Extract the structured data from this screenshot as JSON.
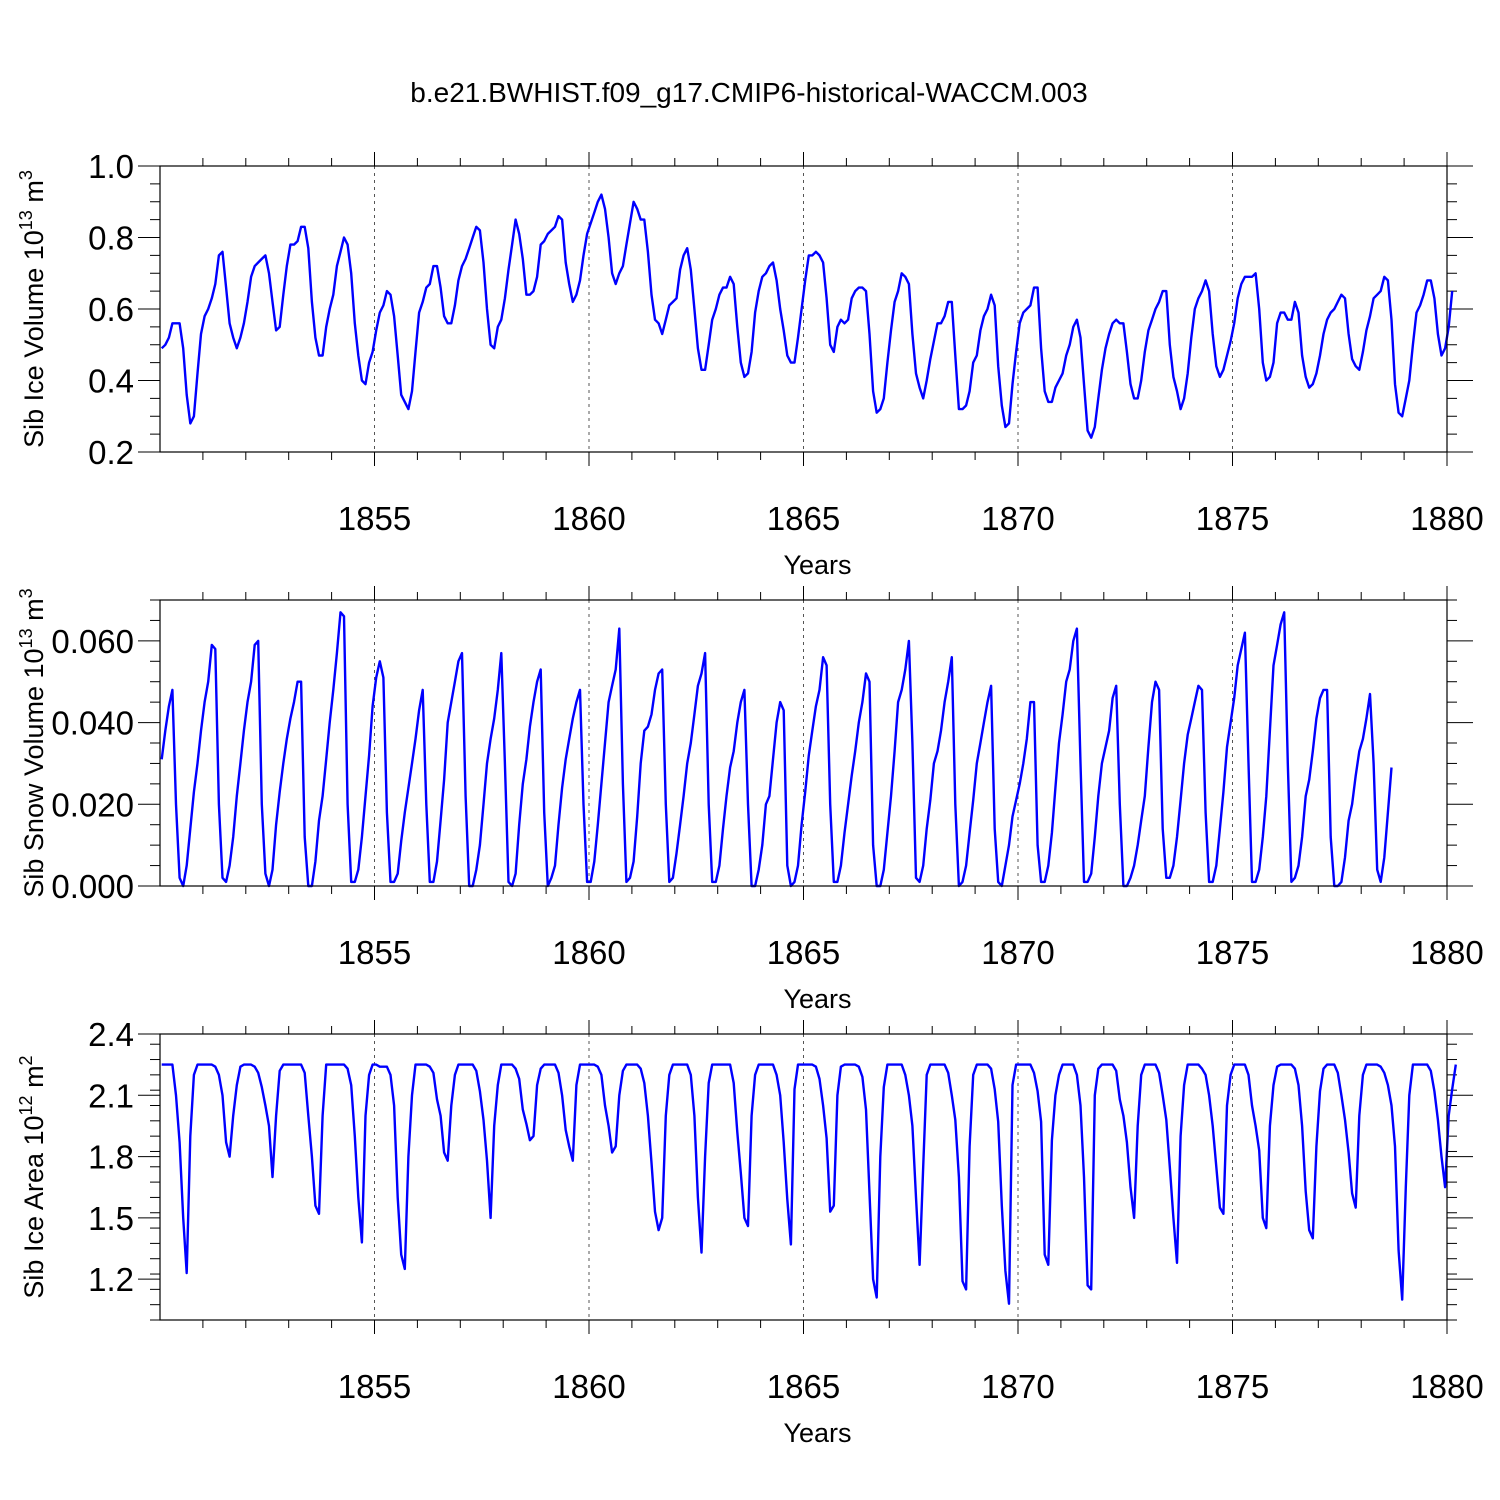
{
  "title": "b.e21.BWHIST.f09_g17.CMIP6-historical-WACCM.003",
  "colors": {
    "series": "#0000ff",
    "axis": "#000000",
    "grid": "#555555"
  },
  "chart_data": [
    {
      "type": "line",
      "name": "sib-ice-volume",
      "ylabel_main": "Sib Ice Volume 10",
      "ylabel_exp": "13",
      "ylabel_unit": "m",
      "ylabel_unit_exp": "3",
      "xlabel": "Years",
      "xlim": [
        1850,
        1880
      ],
      "ylim": [
        0.2,
        1.0
      ],
      "xticks": [
        1855,
        1860,
        1865,
        1870,
        1875,
        1880
      ],
      "xtick_labels": [
        "1855",
        "1860",
        "1865",
        "1870",
        "1875",
        "1880"
      ],
      "yticks": [
        0.2,
        0.4,
        0.6,
        0.8,
        1.0
      ],
      "ytick_labels": [
        "0.2",
        "0.4",
        "0.6",
        "0.8",
        "1.0"
      ],
      "x_start": 1850.04,
      "x_step": 0.08333,
      "values": [
        0.49,
        0.5,
        0.52,
        0.56,
        0.56,
        0.56,
        0.49,
        0.36,
        0.28,
        0.3,
        0.42,
        0.53,
        0.58,
        0.6,
        0.63,
        0.67,
        0.75,
        0.76,
        0.66,
        0.56,
        0.52,
        0.49,
        0.52,
        0.56,
        0.62,
        0.69,
        0.72,
        0.73,
        0.74,
        0.75,
        0.7,
        0.62,
        0.54,
        0.55,
        0.64,
        0.72,
        0.78,
        0.78,
        0.79,
        0.83,
        0.83,
        0.77,
        0.62,
        0.52,
        0.47,
        0.47,
        0.55,
        0.6,
        0.64,
        0.72,
        0.76,
        0.8,
        0.78,
        0.7,
        0.56,
        0.47,
        0.4,
        0.39,
        0.45,
        0.48,
        0.54,
        0.59,
        0.61,
        0.65,
        0.64,
        0.58,
        0.47,
        0.36,
        0.34,
        0.32,
        0.37,
        0.48,
        0.59,
        0.62,
        0.66,
        0.67,
        0.72,
        0.72,
        0.66,
        0.58,
        0.56,
        0.56,
        0.61,
        0.68,
        0.72,
        0.74,
        0.77,
        0.8,
        0.83,
        0.82,
        0.73,
        0.6,
        0.5,
        0.49,
        0.55,
        0.57,
        0.63,
        0.71,
        0.78,
        0.85,
        0.81,
        0.74,
        0.64,
        0.64,
        0.65,
        0.69,
        0.78,
        0.79,
        0.81,
        0.82,
        0.83,
        0.86,
        0.85,
        0.73,
        0.67,
        0.62,
        0.64,
        0.68,
        0.75,
        0.81,
        0.84,
        0.87,
        0.9,
        0.92,
        0.88,
        0.8,
        0.7,
        0.67,
        0.7,
        0.72,
        0.78,
        0.84,
        0.9,
        0.88,
        0.85,
        0.85,
        0.76,
        0.64,
        0.57,
        0.56,
        0.53,
        0.57,
        0.61,
        0.62,
        0.63,
        0.71,
        0.75,
        0.77,
        0.71,
        0.6,
        0.49,
        0.43,
        0.43,
        0.5,
        0.57,
        0.6,
        0.64,
        0.66,
        0.66,
        0.69,
        0.67,
        0.55,
        0.45,
        0.41,
        0.42,
        0.48,
        0.59,
        0.65,
        0.69,
        0.7,
        0.72,
        0.73,
        0.68,
        0.6,
        0.54,
        0.47,
        0.45,
        0.45,
        0.52,
        0.6,
        0.68,
        0.75,
        0.75,
        0.76,
        0.75,
        0.73,
        0.63,
        0.5,
        0.48,
        0.55,
        0.57,
        0.56,
        0.57,
        0.63,
        0.65,
        0.66,
        0.66,
        0.65,
        0.53,
        0.37,
        0.31,
        0.32,
        0.35,
        0.45,
        0.54,
        0.62,
        0.65,
        0.7,
        0.69,
        0.67,
        0.53,
        0.42,
        0.38,
        0.35,
        0.4,
        0.46,
        0.51,
        0.56,
        0.56,
        0.58,
        0.62,
        0.62,
        0.47,
        0.32,
        0.32,
        0.33,
        0.37,
        0.45,
        0.47,
        0.54,
        0.58,
        0.6,
        0.64,
        0.61,
        0.44,
        0.33,
        0.27,
        0.28,
        0.39,
        0.48,
        0.56,
        0.59,
        0.6,
        0.61,
        0.66,
        0.66,
        0.49,
        0.37,
        0.34,
        0.34,
        0.38,
        0.4,
        0.42,
        0.47,
        0.5,
        0.55,
        0.57,
        0.52,
        0.39,
        0.26,
        0.24,
        0.27,
        0.35,
        0.43,
        0.49,
        0.53,
        0.56,
        0.57,
        0.56,
        0.56,
        0.48,
        0.39,
        0.35,
        0.35,
        0.4,
        0.48,
        0.54,
        0.57,
        0.6,
        0.62,
        0.65,
        0.65,
        0.5,
        0.41,
        0.37,
        0.32,
        0.35,
        0.42,
        0.52,
        0.6,
        0.63,
        0.65,
        0.68,
        0.65,
        0.53,
        0.44,
        0.41,
        0.43,
        0.47,
        0.51,
        0.56,
        0.63,
        0.67,
        0.69,
        0.69,
        0.69,
        0.7,
        0.6,
        0.45,
        0.4,
        0.41,
        0.45,
        0.56,
        0.59,
        0.59,
        0.57,
        0.57,
        0.62,
        0.59,
        0.47,
        0.41,
        0.38,
        0.39,
        0.42,
        0.47,
        0.53,
        0.57,
        0.59,
        0.6,
        0.62,
        0.64,
        0.63,
        0.53,
        0.46,
        0.44,
        0.43,
        0.48,
        0.54,
        0.58,
        0.63,
        0.64,
        0.65,
        0.69,
        0.68,
        0.57,
        0.39,
        0.31,
        0.3,
        0.35,
        0.4,
        0.5,
        0.59,
        0.61,
        0.64,
        0.68,
        0.68,
        0.63,
        0.53,
        0.47,
        0.49,
        0.55,
        0.65
      ]
    },
    {
      "type": "line",
      "name": "sib-snow-volume",
      "ylabel_main": "Sib Snow Volume 10",
      "ylabel_exp": "13",
      "ylabel_unit": "m",
      "ylabel_unit_exp": "3",
      "xlabel": "Years",
      "xlim": [
        1850,
        1880
      ],
      "ylim": [
        0.0,
        0.07
      ],
      "xticks": [
        1855,
        1860,
        1865,
        1870,
        1875,
        1880
      ],
      "xtick_labels": [
        "1855",
        "1860",
        "1865",
        "1870",
        "1875",
        "1880"
      ],
      "yticks": [
        0.0,
        0.02,
        0.04,
        0.06
      ],
      "ytick_labels": [
        "0.000",
        "0.020",
        "0.040",
        "0.060"
      ],
      "x_start": 1850.04,
      "x_step": 0.08333,
      "values": [
        0.031,
        0.038,
        0.044,
        0.048,
        0.02,
        0.002,
        0.0,
        0.005,
        0.014,
        0.023,
        0.03,
        0.038,
        0.045,
        0.05,
        0.059,
        0.058,
        0.02,
        0.002,
        0.001,
        0.005,
        0.012,
        0.022,
        0.03,
        0.038,
        0.045,
        0.05,
        0.059,
        0.06,
        0.02,
        0.003,
        0.0,
        0.004,
        0.015,
        0.023,
        0.03,
        0.036,
        0.041,
        0.045,
        0.05,
        0.05,
        0.012,
        0.0,
        0.0,
        0.006,
        0.016,
        0.022,
        0.031,
        0.04,
        0.048,
        0.057,
        0.067,
        0.066,
        0.02,
        0.001,
        0.001,
        0.004,
        0.012,
        0.022,
        0.032,
        0.044,
        0.051,
        0.055,
        0.051,
        0.018,
        0.001,
        0.001,
        0.003,
        0.011,
        0.018,
        0.024,
        0.03,
        0.036,
        0.043,
        0.048,
        0.02,
        0.001,
        0.001,
        0.006,
        0.016,
        0.026,
        0.04,
        0.045,
        0.05,
        0.055,
        0.057,
        0.022,
        0.0,
        0.0,
        0.004,
        0.01,
        0.02,
        0.03,
        0.036,
        0.041,
        0.048,
        0.057,
        0.03,
        0.001,
        0.0,
        0.003,
        0.015,
        0.025,
        0.031,
        0.039,
        0.045,
        0.05,
        0.053,
        0.018,
        0.0,
        0.002,
        0.005,
        0.015,
        0.024,
        0.031,
        0.036,
        0.041,
        0.045,
        0.048,
        0.02,
        0.001,
        0.001,
        0.006,
        0.015,
        0.025,
        0.035,
        0.045,
        0.049,
        0.053,
        0.063,
        0.025,
        0.001,
        0.002,
        0.006,
        0.017,
        0.03,
        0.038,
        0.039,
        0.042,
        0.048,
        0.052,
        0.053,
        0.02,
        0.001,
        0.002,
        0.008,
        0.015,
        0.022,
        0.03,
        0.035,
        0.042,
        0.049,
        0.052,
        0.057,
        0.02,
        0.001,
        0.001,
        0.005,
        0.014,
        0.022,
        0.029,
        0.033,
        0.04,
        0.045,
        0.048,
        0.02,
        0.0,
        0.0,
        0.004,
        0.01,
        0.02,
        0.022,
        0.031,
        0.04,
        0.045,
        0.043,
        0.005,
        0.0,
        0.001,
        0.005,
        0.015,
        0.023,
        0.032,
        0.038,
        0.044,
        0.048,
        0.056,
        0.054,
        0.02,
        0.001,
        0.001,
        0.005,
        0.013,
        0.02,
        0.027,
        0.033,
        0.04,
        0.045,
        0.052,
        0.05,
        0.01,
        0.0,
        0.0,
        0.004,
        0.013,
        0.022,
        0.033,
        0.045,
        0.048,
        0.053,
        0.06,
        0.035,
        0.002,
        0.001,
        0.005,
        0.014,
        0.021,
        0.03,
        0.033,
        0.038,
        0.045,
        0.05,
        0.056,
        0.02,
        0.0,
        0.001,
        0.005,
        0.013,
        0.021,
        0.03,
        0.035,
        0.04,
        0.045,
        0.049,
        0.014,
        0.001,
        0.0,
        0.005,
        0.01,
        0.017,
        0.021,
        0.025,
        0.03,
        0.036,
        0.045,
        0.045,
        0.01,
        0.001,
        0.001,
        0.005,
        0.013,
        0.024,
        0.035,
        0.042,
        0.05,
        0.053,
        0.06,
        0.063,
        0.03,
        0.001,
        0.001,
        0.003,
        0.012,
        0.022,
        0.03,
        0.034,
        0.038,
        0.046,
        0.049,
        0.02,
        0.0,
        0.0,
        0.002,
        0.005,
        0.01,
        0.016,
        0.022,
        0.034,
        0.045,
        0.05,
        0.048,
        0.014,
        0.002,
        0.002,
        0.005,
        0.012,
        0.021,
        0.03,
        0.037,
        0.041,
        0.045,
        0.049,
        0.048,
        0.018,
        0.001,
        0.001,
        0.005,
        0.014,
        0.023,
        0.034,
        0.04,
        0.046,
        0.054,
        0.058,
        0.062,
        0.03,
        0.001,
        0.001,
        0.004,
        0.012,
        0.022,
        0.038,
        0.054,
        0.059,
        0.064,
        0.067,
        0.03,
        0.001,
        0.002,
        0.005,
        0.012,
        0.022,
        0.026,
        0.033,
        0.041,
        0.046,
        0.048,
        0.048,
        0.012,
        0.0,
        0.0,
        0.001,
        0.007,
        0.016,
        0.02,
        0.027,
        0.033,
        0.036,
        0.041,
        0.047,
        0.03,
        0.004,
        0.001,
        0.007,
        0.018,
        0.029
      ]
    },
    {
      "type": "line",
      "name": "sib-ice-area",
      "ylabel_main": "Sib Ice Area 10",
      "ylabel_exp": "12",
      "ylabel_unit": "m",
      "ylabel_unit_exp": "2",
      "xlabel": "Years",
      "xlim": [
        1850,
        1880
      ],
      "ylim": [
        1.0,
        2.4
      ],
      "xticks": [
        1855,
        1860,
        1865,
        1870,
        1875,
        1880
      ],
      "xtick_labels": [
        "1855",
        "1860",
        "1865",
        "1870",
        "1875",
        "1880"
      ],
      "yticks": [
        1.2,
        1.5,
        1.8,
        2.1,
        2.4
      ],
      "ytick_labels": [
        "1.2",
        "1.5",
        "1.8",
        "2.1",
        "2.4"
      ],
      "x_start": 1850.04,
      "x_step": 0.08333,
      "values": [
        2.25,
        2.25,
        2.25,
        2.25,
        2.1,
        1.87,
        1.5,
        1.23,
        1.9,
        2.2,
        2.25,
        2.25,
        2.25,
        2.25,
        2.25,
        2.24,
        2.2,
        2.1,
        1.87,
        1.8,
        2.0,
        2.15,
        2.24,
        2.25,
        2.25,
        2.25,
        2.24,
        2.21,
        2.14,
        2.05,
        1.95,
        1.7,
        2.0,
        2.22,
        2.25,
        2.25,
        2.25,
        2.25,
        2.25,
        2.25,
        2.21,
        2.0,
        1.8,
        1.56,
        1.52,
        2.0,
        2.25,
        2.25,
        2.25,
        2.25,
        2.25,
        2.25,
        2.23,
        2.15,
        1.9,
        1.6,
        1.38,
        2.0,
        2.2,
        2.25,
        2.25,
        2.24,
        2.24,
        2.24,
        2.2,
        2.05,
        1.6,
        1.32,
        1.25,
        1.8,
        2.1,
        2.25,
        2.25,
        2.25,
        2.25,
        2.24,
        2.21,
        2.08,
        2.0,
        1.82,
        1.78,
        2.05,
        2.2,
        2.25,
        2.25,
        2.25,
        2.25,
        2.25,
        2.22,
        2.12,
        1.98,
        1.78,
        1.5,
        1.95,
        2.15,
        2.25,
        2.25,
        2.25,
        2.25,
        2.23,
        2.18,
        2.03,
        1.96,
        1.88,
        1.9,
        2.15,
        2.23,
        2.25,
        2.25,
        2.25,
        2.25,
        2.21,
        2.1,
        1.93,
        1.85,
        1.78,
        2.15,
        2.25,
        2.25,
        2.25,
        2.25,
        2.25,
        2.24,
        2.2,
        2.05,
        1.95,
        1.82,
        1.85,
        2.1,
        2.22,
        2.25,
        2.25,
        2.25,
        2.25,
        2.23,
        2.16,
        2.0,
        1.77,
        1.53,
        1.44,
        1.5,
        2.0,
        2.2,
        2.25,
        2.25,
        2.25,
        2.25,
        2.25,
        2.2,
        2.0,
        1.6,
        1.33,
        1.8,
        2.16,
        2.25,
        2.25,
        2.25,
        2.25,
        2.25,
        2.25,
        2.16,
        1.92,
        1.72,
        1.5,
        1.46,
        2.0,
        2.2,
        2.25,
        2.25,
        2.25,
        2.25,
        2.25,
        2.2,
        2.1,
        1.87,
        1.59,
        1.37,
        2.13,
        2.25,
        2.25,
        2.25,
        2.25,
        2.25,
        2.24,
        2.18,
        2.05,
        1.89,
        1.53,
        1.56,
        2.1,
        2.24,
        2.25,
        2.25,
        2.25,
        2.25,
        2.24,
        2.19,
        2.03,
        1.62,
        1.2,
        1.11,
        1.8,
        2.14,
        2.25,
        2.25,
        2.25,
        2.25,
        2.25,
        2.2,
        2.1,
        1.95,
        1.6,
        1.27,
        1.75,
        2.2,
        2.25,
        2.25,
        2.25,
        2.25,
        2.25,
        2.21,
        2.1,
        1.98,
        1.7,
        1.19,
        1.15,
        1.85,
        2.2,
        2.25,
        2.25,
        2.25,
        2.25,
        2.23,
        2.13,
        1.97,
        1.56,
        1.24,
        1.08,
        2.15,
        2.25,
        2.25,
        2.25,
        2.25,
        2.25,
        2.21,
        2.12,
        1.97,
        1.32,
        1.27,
        1.88,
        2.1,
        2.2,
        2.25,
        2.25,
        2.25,
        2.25,
        2.2,
        2.05,
        1.7,
        1.17,
        1.15,
        2.1,
        2.23,
        2.25,
        2.25,
        2.25,
        2.25,
        2.22,
        2.08,
        2.0,
        1.87,
        1.65,
        1.5,
        1.95,
        2.2,
        2.25,
        2.25,
        2.25,
        2.25,
        2.21,
        2.1,
        1.98,
        1.75,
        1.5,
        1.28,
        1.9,
        2.15,
        2.25,
        2.25,
        2.25,
        2.25,
        2.23,
        2.2,
        2.1,
        1.95,
        1.75,
        1.55,
        1.52,
        2.05,
        2.2,
        2.25,
        2.25,
        2.25,
        2.25,
        2.2,
        2.05,
        1.95,
        1.83,
        1.5,
        1.45,
        1.95,
        2.15,
        2.24,
        2.25,
        2.25,
        2.25,
        2.25,
        2.23,
        2.15,
        1.95,
        1.63,
        1.44,
        1.4,
        1.85,
        2.12,
        2.23,
        2.25,
        2.25,
        2.25,
        2.21,
        2.1,
        1.98,
        1.82,
        1.62,
        1.55,
        2.0,
        2.2,
        2.25,
        2.25,
        2.25,
        2.25,
        2.24,
        2.21,
        2.15,
        2.05,
        1.85,
        1.34,
        1.1,
        1.65,
        2.1,
        2.25,
        2.25,
        2.25,
        2.25,
        2.25,
        2.22,
        2.12,
        1.98,
        1.8,
        1.65,
        2.0,
        2.13,
        2.25
      ]
    }
  ]
}
